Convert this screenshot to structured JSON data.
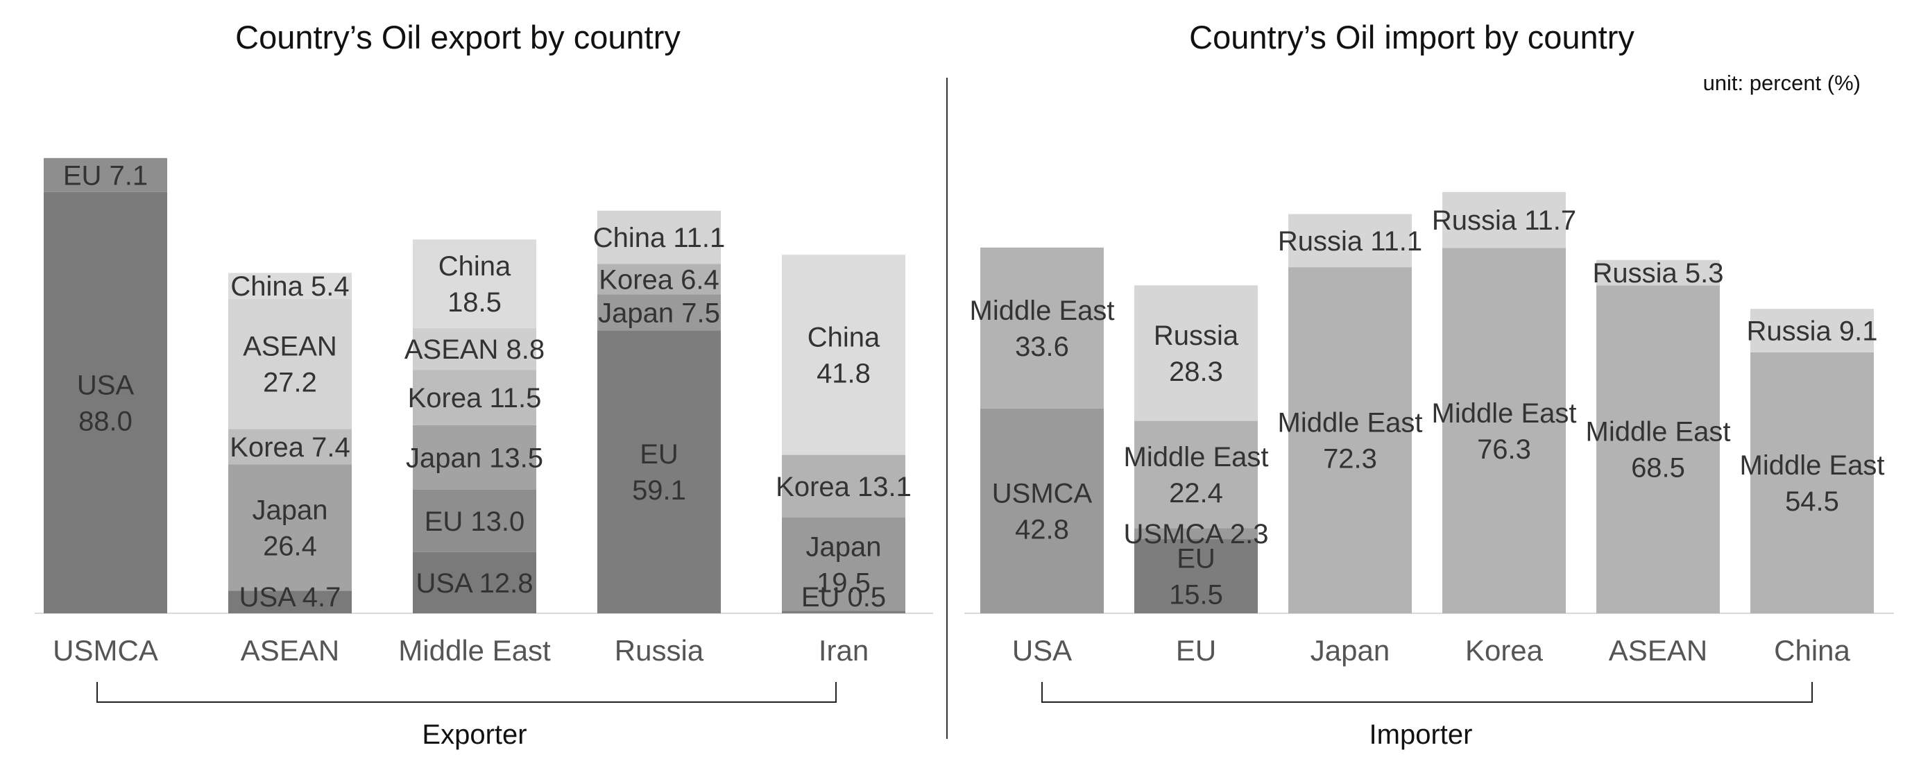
{
  "chart_data": [
    {
      "type": "bar",
      "stacked": true,
      "title": "Country’s Oil export by country",
      "group_label": "Exporter",
      "unit": "",
      "categories": [
        "USMCA",
        "ASEAN",
        "Middle East",
        "Russia",
        "Iran"
      ],
      "ylim": [
        0,
        100
      ],
      "grid": false,
      "bars": [
        {
          "category": "USMCA",
          "segments": [
            {
              "name": "USA",
              "value": 88.0,
              "label": "USA 88.0",
              "color": "#7a7a7a"
            },
            {
              "name": "EU",
              "value": 7.1,
              "label": "EU 7.1",
              "color": "#8e8e8e"
            }
          ]
        },
        {
          "category": "ASEAN",
          "segments": [
            {
              "name": "USA",
              "value": 4.7,
              "label": "USA 4.7",
              "color": "#7a7a7a"
            },
            {
              "name": "Japan",
              "value": 26.4,
              "label": "Japan 26.4",
              "color": "#a3a3a3"
            },
            {
              "name": "Korea",
              "value": 7.4,
              "label": "Korea 7.4",
              "color": "#bdbdbd"
            },
            {
              "name": "ASEAN",
              "value": 27.2,
              "label": "ASEAN 27.2",
              "color": "#d4d4d4"
            },
            {
              "name": "China",
              "value": 5.4,
              "label": "China 5.4",
              "color": "#dcdcdc"
            }
          ]
        },
        {
          "category": "Middle East",
          "segments": [
            {
              "name": "USA",
              "value": 12.8,
              "label": "USA 12.8",
              "color": "#7a7a7a"
            },
            {
              "name": "EU",
              "value": 13.0,
              "label": "EU 13.0",
              "color": "#8e8e8e"
            },
            {
              "name": "Japan",
              "value": 13.5,
              "label": "Japan 13.5",
              "color": "#a3a3a3"
            },
            {
              "name": "Korea",
              "value": 11.5,
              "label": "Korea 11.5",
              "color": "#bdbdbd"
            },
            {
              "name": "ASEAN",
              "value": 8.8,
              "label": "ASEAN 8.8",
              "color": "#cfcfcf"
            },
            {
              "name": "China",
              "value": 18.5,
              "label": "China 18.5",
              "color": "#dcdcdc"
            }
          ]
        },
        {
          "category": "Russia",
          "segments": [
            {
              "name": "EU",
              "value": 59.1,
              "label": "EU 59.1",
              "color": "#7d7d7d"
            },
            {
              "name": "Japan",
              "value": 7.5,
              "label": "Japan 7.5",
              "color": "#9a9a9a"
            },
            {
              "name": "Korea",
              "value": 6.4,
              "label": "Korea 6.4",
              "color": "#b3b3b3"
            },
            {
              "name": "China",
              "value": 11.1,
              "label": "China 11.1",
              "color": "#d4d4d4"
            }
          ]
        },
        {
          "category": "Iran",
          "segments": [
            {
              "name": "EU",
              "value": 0.5,
              "label": "EU 0.5",
              "color": "#7d7d7d"
            },
            {
              "name": "Japan",
              "value": 19.5,
              "label": "Japan 19.5",
              "color": "#9a9a9a"
            },
            {
              "name": "Korea",
              "value": 13.1,
              "label": "Korea 13.1",
              "color": "#b3b3b3"
            },
            {
              "name": "China",
              "value": 41.8,
              "label": "China 41.8",
              "color": "#dcdcdc"
            }
          ]
        }
      ]
    },
    {
      "type": "bar",
      "stacked": true,
      "title": "Country’s Oil import by country",
      "group_label": "Importer",
      "unit": "unit: percent (%)",
      "categories": [
        "USA",
        "EU",
        "Japan",
        "Korea",
        "ASEAN",
        "China"
      ],
      "ylim": [
        0,
        100
      ],
      "grid": false,
      "bars": [
        {
          "category": "USA",
          "segments": [
            {
              "name": "USMCA",
              "value": 42.8,
              "label": "USMCA 42.8",
              "color": "#9a9a9a"
            },
            {
              "name": "Middle East",
              "value": 33.6,
              "label": "Middle East 33.6",
              "color": "#b3b3b3"
            }
          ]
        },
        {
          "category": "EU",
          "segments": [
            {
              "name": "EU",
              "value": 15.5,
              "label": "EU 15.5",
              "color": "#7d7d7d"
            },
            {
              "name": "USMCA",
              "value": 2.3,
              "label": "USMCA 2.3",
              "color": "#9a9a9a"
            },
            {
              "name": "Middle East",
              "value": 22.4,
              "label": "Middle East 22.4",
              "color": "#b3b3b3"
            },
            {
              "name": "Russia",
              "value": 28.3,
              "label": "Russia 28.3",
              "color": "#d6d6d6"
            }
          ]
        },
        {
          "category": "Japan",
          "segments": [
            {
              "name": "Middle East",
              "value": 72.3,
              "label": "Middle East 72.3",
              "color": "#b3b3b3"
            },
            {
              "name": "Russia",
              "value": 11.1,
              "label": "Russia 11.1",
              "color": "#d6d6d6"
            }
          ]
        },
        {
          "category": "Korea",
          "segments": [
            {
              "name": "Middle East",
              "value": 76.3,
              "label": "Middle East 76.3",
              "color": "#b3b3b3"
            },
            {
              "name": "Russia",
              "value": 11.7,
              "label": "Russia 11.7",
              "color": "#d6d6d6"
            }
          ]
        },
        {
          "category": "ASEAN",
          "segments": [
            {
              "name": "Middle East",
              "value": 68.5,
              "label": "Middle East 68.5",
              "color": "#b3b3b3"
            },
            {
              "name": "Russia",
              "value": 5.3,
              "label": "Russia 5.3",
              "color": "#d6d6d6"
            }
          ]
        },
        {
          "category": "China",
          "segments": [
            {
              "name": "Middle East",
              "value": 54.5,
              "label": "Middle East 54.5",
              "color": "#b3b3b3"
            },
            {
              "name": "Russia",
              "value": 9.1,
              "label": "Russia 9.1",
              "color": "#d6d6d6"
            }
          ]
        }
      ]
    }
  ]
}
